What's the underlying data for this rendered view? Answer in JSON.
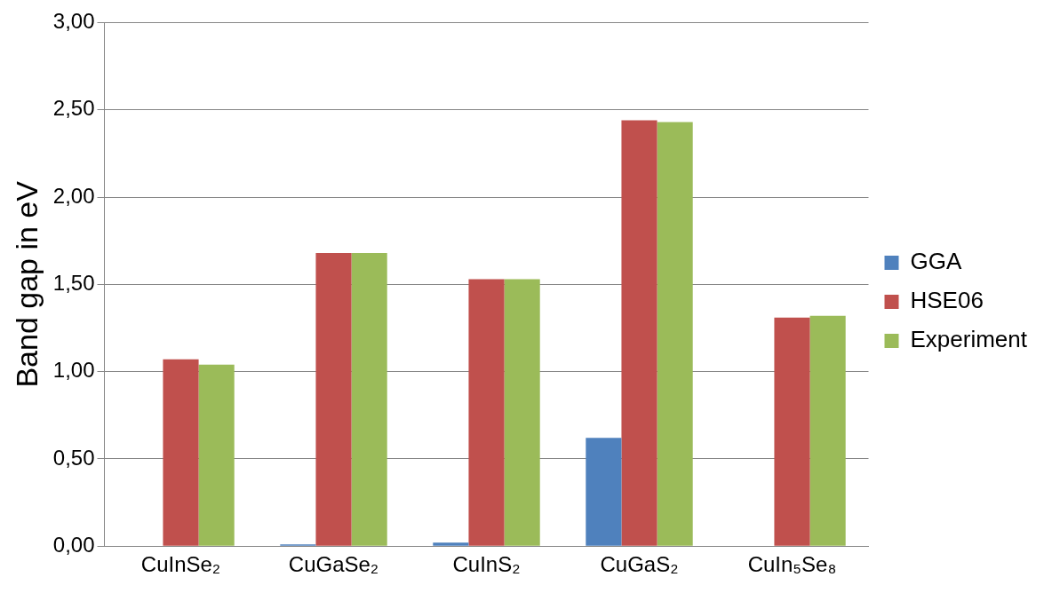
{
  "chart_data": {
    "type": "bar",
    "ylabel": "Band gap in eV",
    "categories": [
      "CuInSe₂",
      "CuGaSe₂",
      "CuInS₂",
      "CuGaS₂",
      "CuIn₅Se₈"
    ],
    "series": [
      {
        "name": "GGA",
        "color": "#4f81bd",
        "values": [
          0,
          0.01,
          0.02,
          0.62,
          0
        ]
      },
      {
        "name": "HSE06",
        "color": "#c0504d",
        "values": [
          1.07,
          1.68,
          1.53,
          2.44,
          1.31
        ]
      },
      {
        "name": "Experiment",
        "color": "#9bbb59",
        "values": [
          1.04,
          1.68,
          1.53,
          2.43,
          1.32
        ]
      }
    ],
    "ylim": [
      0,
      3
    ],
    "yticks": [
      {
        "value": 0,
        "label": "0,00"
      },
      {
        "value": 0.5,
        "label": "0,50"
      },
      {
        "value": 1,
        "label": "1,00"
      },
      {
        "value": 1.5,
        "label": "1,50"
      },
      {
        "value": 2,
        "label": "2,00"
      },
      {
        "value": 2.5,
        "label": "2,50"
      },
      {
        "value": 3,
        "label": "3,00"
      }
    ],
    "grid": "y",
    "legend": "right"
  }
}
